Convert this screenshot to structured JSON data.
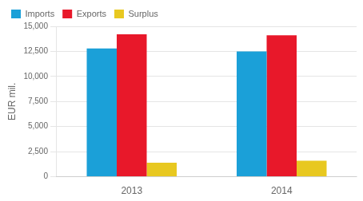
{
  "chart_data": {
    "type": "bar",
    "categories": [
      "2013",
      "2014"
    ],
    "series": [
      {
        "name": "Imports",
        "color": "#1BA0D8",
        "values": [
          12800,
          12500
        ]
      },
      {
        "name": "Exports",
        "color": "#E8182A",
        "values": [
          14200,
          14100
        ]
      },
      {
        "name": "Surplus",
        "color": "#E8C820",
        "values": [
          1400,
          1600
        ]
      }
    ],
    "ylabel": "EUR mil.",
    "ylim": [
      0,
      15000
    ],
    "yticks": [
      0,
      {
        "value": 2500,
        "label": "2,500"
      },
      {
        "value": 5000,
        "label": "5,000"
      },
      {
        "value": 7500,
        "label": "7,500"
      },
      {
        "value": 10000,
        "label": "10,000"
      },
      {
        "value": 12500,
        "label": "12,500"
      },
      {
        "value": 15000,
        "label": "15,000"
      }
    ],
    "grid": true,
    "legend": "upper left"
  }
}
